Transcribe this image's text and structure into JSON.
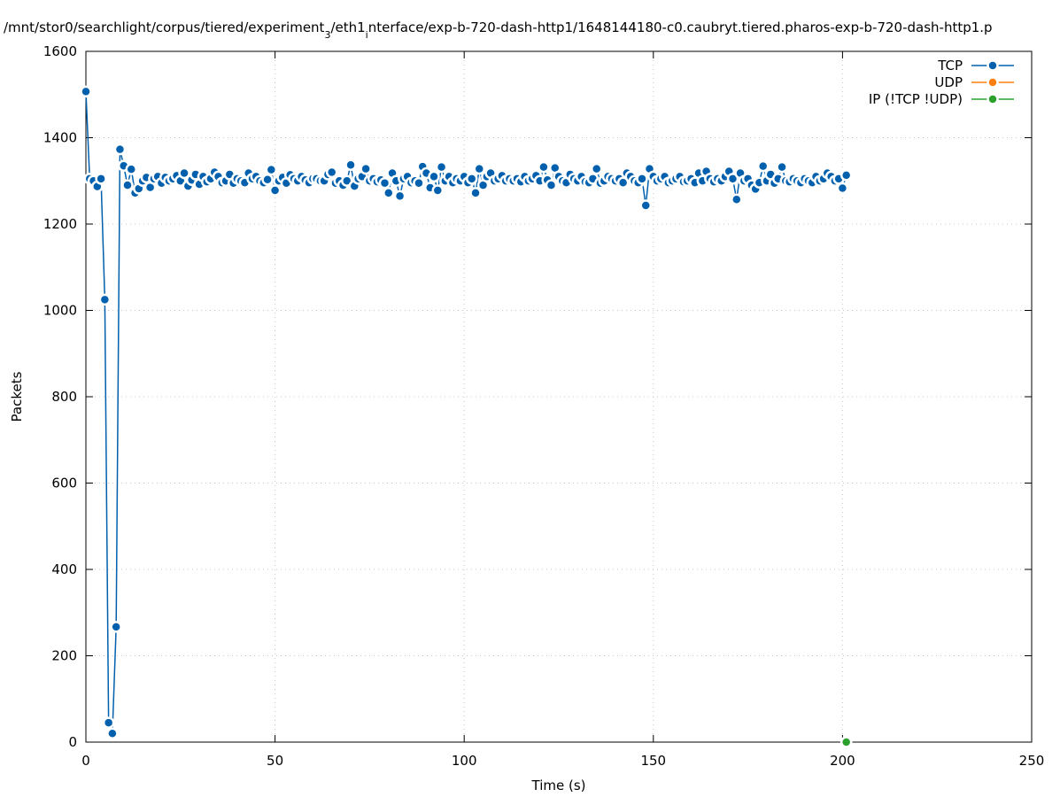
{
  "chart_data": {
    "type": "line",
    "title": [
      "/mnt/stor0/searchlight/corpus/tiered/experiment",
      "3",
      "/eth1",
      "i",
      "nterface/exp-b-720-dash-http1/1648144180-c0.caubryt.tiered.pharos-exp-b-720-dash-http1.p"
    ],
    "xlabel": "Time (s)",
    "ylabel": "Packets",
    "xlim": [
      0,
      250
    ],
    "xticks": [
      0,
      50,
      100,
      150,
      200,
      250
    ],
    "ylim": [
      0,
      1600
    ],
    "yticks": [
      0,
      200,
      400,
      600,
      800,
      1000,
      1200,
      1400,
      1600
    ],
    "grid": true,
    "legend": "top right",
    "series": [
      {
        "name": "TCP",
        "color": "#0060ad",
        "x": [
          0,
          1,
          2,
          3,
          4,
          5,
          6,
          7,
          8,
          9,
          10,
          11,
          12,
          13,
          14,
          15,
          16,
          17,
          18,
          19,
          20,
          21,
          22,
          23,
          24,
          25,
          26,
          27,
          28,
          29,
          30,
          31,
          32,
          33,
          34,
          35,
          36,
          37,
          38,
          39,
          40,
          41,
          42,
          43,
          44,
          45,
          46,
          47,
          48,
          49,
          50,
          51,
          52,
          53,
          54,
          55,
          56,
          57,
          58,
          59,
          60,
          61,
          62,
          63,
          64,
          65,
          66,
          67,
          68,
          69,
          70,
          71,
          72,
          73,
          74,
          75,
          76,
          77,
          78,
          79,
          80,
          81,
          82,
          83,
          84,
          85,
          86,
          87,
          88,
          89,
          90,
          91,
          92,
          93,
          94,
          95,
          96,
          97,
          98,
          99,
          100,
          101,
          102,
          103,
          104,
          105,
          106,
          107,
          108,
          109,
          110,
          111,
          112,
          113,
          114,
          115,
          116,
          117,
          118,
          119,
          120,
          121,
          122,
          123,
          124,
          125,
          126,
          127,
          128,
          129,
          130,
          131,
          132,
          133,
          134,
          135,
          136,
          137,
          138,
          139,
          140,
          141,
          142,
          143,
          144,
          145,
          146,
          147,
          148,
          149,
          150,
          151,
          152,
          153,
          154,
          155,
          156,
          157,
          158,
          159,
          160,
          161,
          162,
          163,
          164,
          165,
          166,
          167,
          168,
          169,
          170,
          171,
          172,
          173,
          174,
          175,
          176,
          177,
          178,
          179,
          180,
          181,
          182,
          183,
          184,
          185,
          186,
          187,
          188,
          189,
          190,
          191,
          192,
          193,
          194,
          195,
          196,
          197,
          198,
          199,
          200,
          201
        ],
        "values": [
          1507,
          1305,
          1300,
          1287,
          1305,
          1025,
          45,
          20,
          267,
          1373,
          1335,
          1290,
          1327,
          1272,
          1282,
          1300,
          1308,
          1285,
          1305,
          1310,
          1295,
          1308,
          1300,
          1305,
          1312,
          1300,
          1318,
          1288,
          1302,
          1315,
          1292,
          1310,
          1298,
          1305,
          1320,
          1310,
          1296,
          1300,
          1315,
          1295,
          1305,
          1300,
          1296,
          1318,
          1305,
          1310,
          1300,
          1296,
          1303,
          1326,
          1278,
          1300,
          1308,
          1295,
          1314,
          1305,
          1300,
          1310,
          1302,
          1296,
          1305,
          1305,
          1300,
          1300,
          1315,
          1320,
          1295,
          1300,
          1290,
          1300,
          1337,
          1288,
          1305,
          1310,
          1328,
          1300,
          1305,
          1298,
          1302,
          1295,
          1272,
          1318,
          1300,
          1265,
          1305,
          1310,
          1296,
          1300,
          1295,
          1333,
          1318,
          1284,
          1310,
          1278,
          1332,
          1300,
          1310,
          1296,
          1305,
          1300,
          1310,
          1296,
          1305,
          1272,
          1328,
          1290,
          1310,
          1318,
          1300,
          1305,
          1312,
          1300,
          1305,
          1300,
          1305,
          1298,
          1310,
          1300,
          1305,
          1312,
          1300,
          1332,
          1302,
          1290,
          1330,
          1310,
          1300,
          1296,
          1315,
          1305,
          1300,
          1310,
          1298,
          1296,
          1305,
          1328,
          1295,
          1300,
          1310,
          1305,
          1300,
          1305,
          1296,
          1318,
          1310,
          1300,
          1296,
          1305,
          1243,
          1328,
          1310,
          1300,
          1305,
          1310,
          1296,
          1300,
          1305,
          1310,
          1298,
          1300,
          1305,
          1296,
          1318,
          1300,
          1322,
          1305,
          1298,
          1305,
          1300,
          1310,
          1322,
          1305,
          1257,
          1318,
          1300,
          1305,
          1290,
          1281,
          1296,
          1334,
          1300,
          1315,
          1295,
          1305,
          1332,
          1300,
          1298,
          1305,
          1300,
          1296,
          1305,
          1300,
          1296,
          1310,
          1300,
          1305,
          1318,
          1310,
          1300,
          1305,
          1283,
          1313
        ]
      },
      {
        "name": "UDP",
        "color": "#ff7f0e",
        "x": [
          201
        ],
        "values": [
          0
        ]
      },
      {
        "name": "IP (!TCP  !UDP)",
        "color": "#2ca02c",
        "x": [
          201
        ],
        "values": [
          0
        ]
      }
    ]
  }
}
